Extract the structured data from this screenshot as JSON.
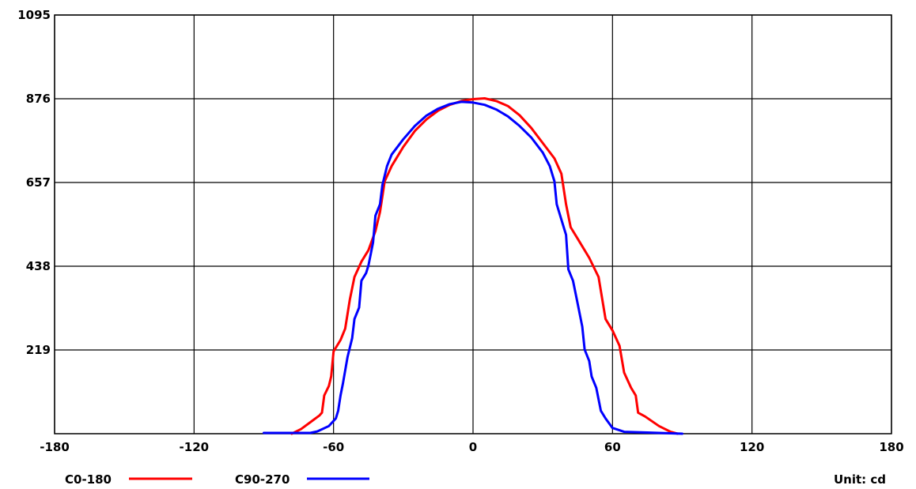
{
  "chart_data": {
    "type": "line",
    "xlim": [
      -180,
      180
    ],
    "ylim": [
      0,
      1095
    ],
    "x_ticks": [
      "-180",
      "-120",
      "-60",
      "0",
      "60",
      "120",
      "180"
    ],
    "y_ticks": [
      "219",
      "438",
      "657",
      "876",
      "1095"
    ],
    "grid": true,
    "unit_label": "Unit: cd",
    "series": [
      {
        "name": "C0-180",
        "color": "#ff0000",
        "points": [
          [
            -78,
            0
          ],
          [
            -74,
            12
          ],
          [
            -70,
            30
          ],
          [
            -66,
            48
          ],
          [
            -65,
            55
          ],
          [
            -64,
            100
          ],
          [
            -62,
            125
          ],
          [
            -61,
            150
          ],
          [
            -60,
            215
          ],
          [
            -57,
            245
          ],
          [
            -55,
            275
          ],
          [
            -53,
            350
          ],
          [
            -51,
            410
          ],
          [
            -48,
            450
          ],
          [
            -45,
            480
          ],
          [
            -42,
            530
          ],
          [
            -40,
            580
          ],
          [
            -38,
            660
          ],
          [
            -35,
            700
          ],
          [
            -30,
            750
          ],
          [
            -25,
            792
          ],
          [
            -20,
            822
          ],
          [
            -15,
            845
          ],
          [
            -10,
            860
          ],
          [
            -5,
            870
          ],
          [
            0,
            875
          ],
          [
            5,
            877
          ],
          [
            10,
            870
          ],
          [
            15,
            857
          ],
          [
            20,
            833
          ],
          [
            25,
            800
          ],
          [
            30,
            760
          ],
          [
            35,
            720
          ],
          [
            38,
            680
          ],
          [
            40,
            600
          ],
          [
            42,
            540
          ],
          [
            45,
            510
          ],
          [
            50,
            460
          ],
          [
            54,
            410
          ],
          [
            57,
            300
          ],
          [
            60,
            270
          ],
          [
            63,
            230
          ],
          [
            65,
            160
          ],
          [
            68,
            120
          ],
          [
            70,
            100
          ],
          [
            71,
            55
          ],
          [
            74,
            45
          ],
          [
            80,
            20
          ],
          [
            85,
            5
          ],
          [
            88,
            0
          ]
        ]
      },
      {
        "name": "C90-270",
        "color": "#0000ff",
        "points": [
          [
            -90,
            2
          ],
          [
            -85,
            2
          ],
          [
            -80,
            2
          ],
          [
            -70,
            2
          ],
          [
            -67,
            6
          ],
          [
            -62,
            20
          ],
          [
            -59,
            40
          ],
          [
            -58,
            60
          ],
          [
            -57,
            100
          ],
          [
            -56,
            130
          ],
          [
            -54,
            200
          ],
          [
            -52,
            250
          ],
          [
            -51,
            300
          ],
          [
            -49,
            330
          ],
          [
            -48,
            400
          ],
          [
            -46,
            420
          ],
          [
            -45,
            440
          ],
          [
            -43,
            500
          ],
          [
            -42,
            570
          ],
          [
            -40,
            600
          ],
          [
            -39,
            650
          ],
          [
            -37,
            700
          ],
          [
            -35,
            730
          ],
          [
            -30,
            770
          ],
          [
            -25,
            805
          ],
          [
            -20,
            832
          ],
          [
            -15,
            850
          ],
          [
            -10,
            862
          ],
          [
            -5,
            868
          ],
          [
            0,
            866
          ],
          [
            5,
            860
          ],
          [
            10,
            848
          ],
          [
            15,
            830
          ],
          [
            20,
            805
          ],
          [
            25,
            775
          ],
          [
            30,
            735
          ],
          [
            33,
            700
          ],
          [
            35,
            660
          ],
          [
            36,
            600
          ],
          [
            38,
            560
          ],
          [
            40,
            520
          ],
          [
            41,
            430
          ],
          [
            43,
            400
          ],
          [
            45,
            340
          ],
          [
            46,
            310
          ],
          [
            47,
            280
          ],
          [
            48,
            220
          ],
          [
            50,
            190
          ],
          [
            51,
            150
          ],
          [
            53,
            120
          ],
          [
            55,
            60
          ],
          [
            57,
            40
          ],
          [
            60,
            15
          ],
          [
            65,
            5
          ],
          [
            75,
            3
          ],
          [
            90,
            0
          ]
        ]
      }
    ]
  }
}
